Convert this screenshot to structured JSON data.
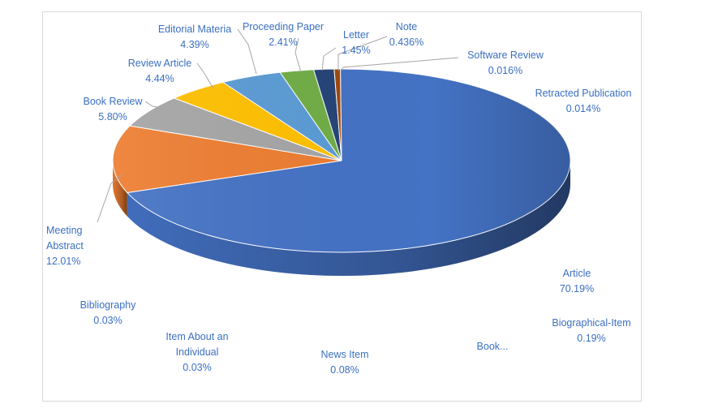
{
  "chart_data": {
    "type": "pie",
    "style": "3d-pie",
    "slices": [
      {
        "name": "Article",
        "value": 70.19,
        "value_label": "70.19%",
        "color": "#4472c4"
      },
      {
        "name": "Meeting Abstract",
        "value": 12.01,
        "value_label": "12.01%",
        "color": "#ed7d31"
      },
      {
        "name": "Book Review",
        "value": 5.8,
        "value_label": "5.80%",
        "color": "#a5a5a5"
      },
      {
        "name": "Review Article",
        "value": 4.44,
        "value_label": "4.44%",
        "color": "#ffc000"
      },
      {
        "name": "Editorial Materia",
        "value": 4.39,
        "value_label": "4.39%",
        "color": "#5b9bd5"
      },
      {
        "name": "Proceeding Paper",
        "value": 2.41,
        "value_label": "2.41%",
        "color": "#70ad47"
      },
      {
        "name": "Letter",
        "value": 1.45,
        "value_label": "1.45%",
        "color": "#264478"
      },
      {
        "name": "Note",
        "value": 0.436,
        "value_label": "0.436%",
        "color": "#9e480e"
      },
      {
        "name": "Software Review",
        "value": 0.016,
        "value_label": "0.016%",
        "color": "#636363"
      },
      {
        "name": "Retracted Publication",
        "value": 0.014,
        "value_label": "0.014%",
        "color": "#997300"
      },
      {
        "name": "Biographical-Item",
        "value": 0.19,
        "value_label": "0.19%",
        "color": "#255e91"
      },
      {
        "name": "Book...",
        "value": null,
        "value_label": "",
        "color": "#43682b"
      },
      {
        "name": "News Item",
        "value": 0.08,
        "value_label": "0.08%",
        "color": "#698ed0"
      },
      {
        "name": "Item About an Individual",
        "value": 0.03,
        "value_label": "0.03%",
        "color": "#f1975a"
      },
      {
        "name": "Bibliography",
        "value": 0.03,
        "value_label": "0.03%",
        "color": "#b7b7b7"
      }
    ],
    "labels": {
      "article": {
        "lines": [
          "Article",
          "70.19%"
        ]
      },
      "meeting_abstract": {
        "lines": [
          "Meeting",
          "Abstract",
          "12.01%"
        ]
      },
      "book_review": {
        "lines": [
          "Book Review",
          "5.80%"
        ]
      },
      "review_article": {
        "lines": [
          "Review Article",
          "4.44%"
        ]
      },
      "editorial_materia": {
        "lines": [
          "Editorial Materia",
          "4.39%"
        ]
      },
      "proceeding_paper": {
        "lines": [
          "Proceeding Paper",
          "2.41%"
        ]
      },
      "letter": {
        "lines": [
          "Letter",
          "1.45%"
        ]
      },
      "note": {
        "lines": [
          "Note",
          "0.436%"
        ]
      },
      "software_review": {
        "lines": [
          "Software Review",
          "0.016%"
        ]
      },
      "retracted_publication": {
        "lines": [
          "Retracted Publication",
          "0.014%"
        ]
      },
      "biographical_item": {
        "lines": [
          "Biographical-Item",
          "0.19%"
        ]
      },
      "book_truncated": {
        "lines": [
          "Book..."
        ]
      },
      "news_item": {
        "lines": [
          "News Item",
          "0.08%"
        ]
      },
      "item_about_individual": {
        "lines": [
          "Item About an",
          "Individual",
          "0.03%"
        ]
      },
      "bibliography": {
        "lines": [
          "Bibliography",
          "0.03%"
        ]
      }
    },
    "title": "",
    "legend": "none",
    "label_color": "#3b6fc2"
  }
}
